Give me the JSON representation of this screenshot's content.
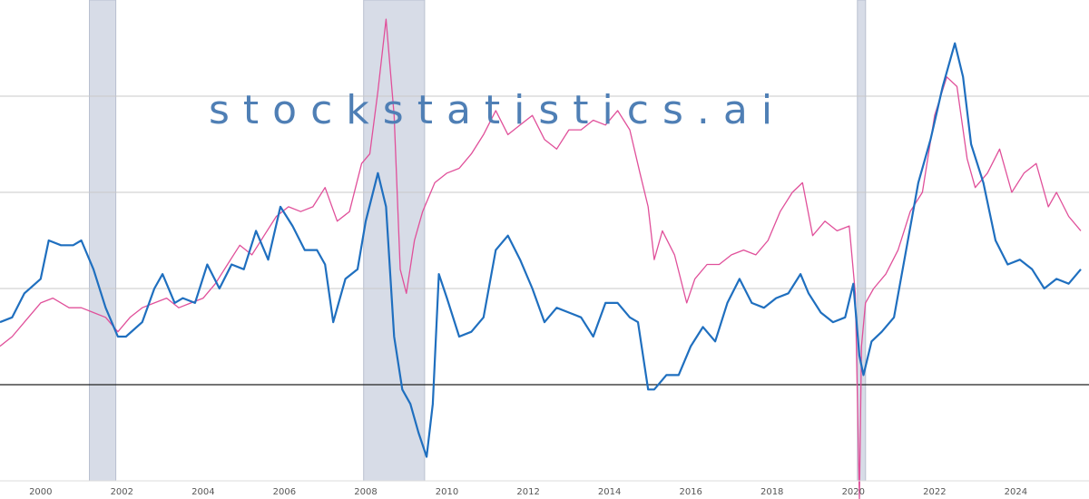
{
  "watermark": "stockstatistics.ai",
  "colors": {
    "blue": "#1f6fbf",
    "pink": "#e0509a",
    "recession": "#d7dce7",
    "grid": "#c8c8c8",
    "zero": "#222222",
    "watermark": "#4f7fb5"
  },
  "chart_data": {
    "type": "line",
    "title": "",
    "xlabel": "",
    "ylabel": "",
    "x_ticks": [
      "2000",
      "2002",
      "2004",
      "2006",
      "2008",
      "2010",
      "2012",
      "2014",
      "2016",
      "2018",
      "2020",
      "2022",
      "2024"
    ],
    "xlim": [
      1999.0,
      2025.8
    ],
    "ylim": [
      -1.0,
      4.0
    ],
    "gridlines_y": [
      1,
      2,
      3
    ],
    "zero_line": 0,
    "grid": true,
    "recessions": [
      [
        2001.2,
        2001.85
      ],
      [
        2007.95,
        2009.45
      ],
      [
        2020.1,
        2020.3
      ]
    ],
    "series": [
      {
        "name": "",
        "color": "#1f6fbf",
        "x": [
          1999.0,
          1999.3,
          1999.6,
          2000.0,
          2000.2,
          2000.5,
          2000.8,
          2001.0,
          2001.3,
          2001.6,
          2001.9,
          2002.1,
          2002.5,
          2002.8,
          2003.0,
          2003.3,
          2003.5,
          2003.8,
          2004.1,
          2004.4,
          2004.7,
          2005.0,
          2005.3,
          2005.6,
          2005.9,
          2006.2,
          2006.5,
          2006.8,
          2007.0,
          2007.2,
          2007.5,
          2007.8,
          2008.0,
          2008.3,
          2008.5,
          2008.7,
          2008.9,
          2009.1,
          2009.3,
          2009.5,
          2009.65,
          2009.8,
          2010.0,
          2010.3,
          2010.6,
          2010.9,
          2011.2,
          2011.5,
          2011.8,
          2012.1,
          2012.4,
          2012.7,
          2013.0,
          2013.3,
          2013.6,
          2013.9,
          2014.2,
          2014.5,
          2014.7,
          2014.95,
          2015.1,
          2015.4,
          2015.7,
          2016.0,
          2016.3,
          2016.6,
          2016.9,
          2017.2,
          2017.5,
          2017.8,
          2018.1,
          2018.4,
          2018.7,
          2018.9,
          2019.2,
          2019.5,
          2019.8,
          2020.0,
          2020.15,
          2020.25,
          2020.45,
          2020.7,
          2021.0,
          2021.3,
          2021.6,
          2021.9,
          2022.2,
          2022.5,
          2022.7,
          2022.9,
          2023.2,
          2023.5,
          2023.8,
          2024.1,
          2024.4,
          2024.7,
          2025.0,
          2025.3,
          2025.6
        ],
        "values": [
          0.65,
          0.7,
          0.95,
          1.1,
          1.5,
          1.45,
          1.45,
          1.5,
          1.2,
          0.8,
          0.5,
          0.5,
          0.65,
          1.0,
          1.15,
          0.85,
          0.9,
          0.85,
          1.25,
          1.0,
          1.25,
          1.2,
          1.6,
          1.3,
          1.85,
          1.65,
          1.4,
          1.4,
          1.25,
          0.65,
          1.1,
          1.2,
          1.7,
          2.2,
          1.85,
          0.5,
          -0.05,
          -0.2,
          -0.5,
          -0.75,
          -0.2,
          1.15,
          0.9,
          0.5,
          0.55,
          0.7,
          1.4,
          1.55,
          1.3,
          1.0,
          0.65,
          0.8,
          0.75,
          0.7,
          0.5,
          0.85,
          0.85,
          0.7,
          0.65,
          -0.05,
          -0.05,
          0.1,
          0.1,
          0.4,
          0.6,
          0.45,
          0.85,
          1.1,
          0.85,
          0.8,
          0.9,
          0.95,
          1.15,
          0.95,
          0.75,
          0.65,
          0.7,
          1.05,
          0.3,
          0.1,
          0.45,
          0.55,
          0.7,
          1.4,
          2.1,
          2.55,
          3.1,
          3.55,
          3.2,
          2.5,
          2.1,
          1.5,
          1.25,
          1.3,
          1.2,
          1.0,
          1.1,
          1.05,
          1.2
        ]
      },
      {
        "name": "",
        "color": "#e0509a",
        "x": [
          1999.0,
          1999.3,
          1999.7,
          2000.0,
          2000.3,
          2000.7,
          2001.0,
          2001.3,
          2001.6,
          2001.9,
          2002.2,
          2002.5,
          2002.8,
          2003.1,
          2003.4,
          2003.7,
          2004.0,
          2004.3,
          2004.6,
          2004.9,
          2005.2,
          2005.5,
          2005.8,
          2006.1,
          2006.4,
          2006.7,
          2007.0,
          2007.3,
          2007.6,
          2007.9,
          2008.1,
          2008.3,
          2008.5,
          2008.7,
          2008.85,
          2009.0,
          2009.2,
          2009.4,
          2009.7,
          2010.0,
          2010.3,
          2010.6,
          2010.9,
          2011.2,
          2011.5,
          2011.8,
          2012.1,
          2012.4,
          2012.7,
          2013.0,
          2013.3,
          2013.6,
          2013.9,
          2014.2,
          2014.5,
          2014.75,
          2014.95,
          2015.1,
          2015.3,
          2015.6,
          2015.9,
          2016.1,
          2016.4,
          2016.7,
          2017.0,
          2017.3,
          2017.6,
          2017.9,
          2018.2,
          2018.5,
          2018.75,
          2019.0,
          2019.3,
          2019.6,
          2019.9,
          2020.05,
          2020.15,
          2020.2,
          2020.3,
          2020.5,
          2020.8,
          2021.1,
          2021.4,
          2021.7,
          2022.0,
          2022.3,
          2022.55,
          2022.8,
          2023.0,
          2023.3,
          2023.6,
          2023.9,
          2024.2,
          2024.5,
          2024.8,
          2025.0,
          2025.3,
          2025.6
        ],
        "values": [
          0.4,
          0.5,
          0.7,
          0.85,
          0.9,
          0.8,
          0.8,
          0.75,
          0.7,
          0.55,
          0.7,
          0.8,
          0.85,
          0.9,
          0.8,
          0.85,
          0.9,
          1.05,
          1.25,
          1.45,
          1.35,
          1.55,
          1.75,
          1.85,
          1.8,
          1.85,
          2.05,
          1.7,
          1.8,
          2.3,
          2.4,
          3.05,
          3.8,
          2.8,
          1.2,
          0.95,
          1.5,
          1.8,
          2.1,
          2.2,
          2.25,
          2.4,
          2.6,
          2.85,
          2.6,
          2.7,
          2.8,
          2.55,
          2.45,
          2.65,
          2.65,
          2.75,
          2.7,
          2.85,
          2.65,
          2.2,
          1.85,
          1.3,
          1.6,
          1.35,
          0.85,
          1.1,
          1.25,
          1.25,
          1.35,
          1.4,
          1.35,
          1.5,
          1.8,
          2.0,
          2.1,
          1.55,
          1.7,
          1.6,
          1.65,
          0.95,
          -1.2,
          0.4,
          0.85,
          1.0,
          1.15,
          1.4,
          1.8,
          2.0,
          2.8,
          3.2,
          3.1,
          2.35,
          2.05,
          2.2,
          2.45,
          2.0,
          2.2,
          2.3,
          1.85,
          2.0,
          1.75,
          1.6
        ]
      }
    ]
  }
}
